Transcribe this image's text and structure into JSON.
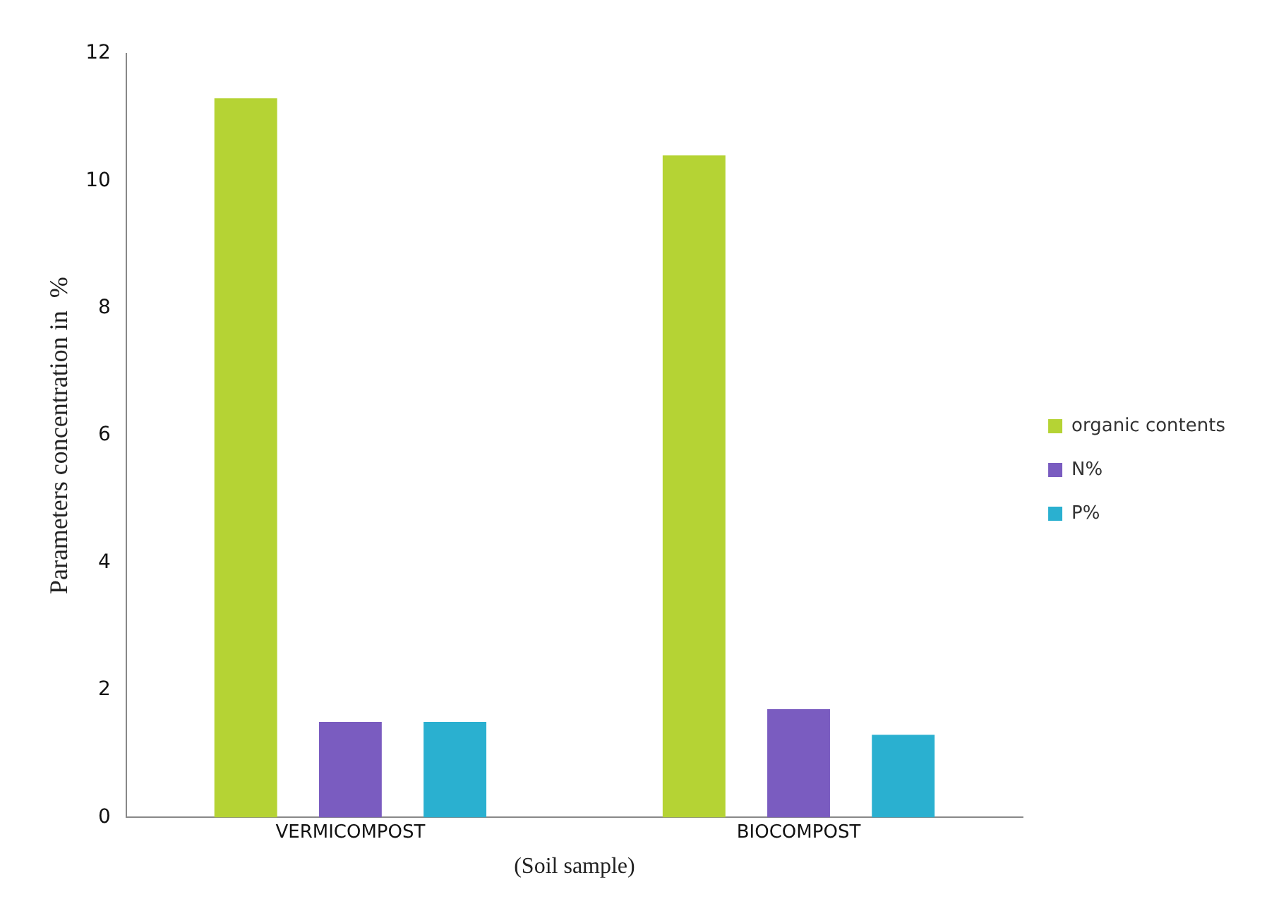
{
  "chart_data": {
    "type": "bar",
    "ylabel": "Parameters concentration in  %",
    "xlabel": "(Soil sample)",
    "categories": [
      "VERMICOMPOST",
      "BIOCOMPOST"
    ],
    "series": [
      {
        "name": "organic contents",
        "color": "#b5d334",
        "values": [
          11.3,
          10.4
        ]
      },
      {
        "name": "N%",
        "color": "#7a5cc0",
        "values": [
          1.5,
          1.7
        ]
      },
      {
        "name": "P%",
        "color": "#2ab0d0",
        "values": [
          1.5,
          1.3
        ]
      }
    ],
    "ylim": [
      0,
      12
    ],
    "yticks": [
      0,
      2,
      4,
      6,
      8,
      10,
      12
    ],
    "grid": false,
    "legend": "right"
  }
}
